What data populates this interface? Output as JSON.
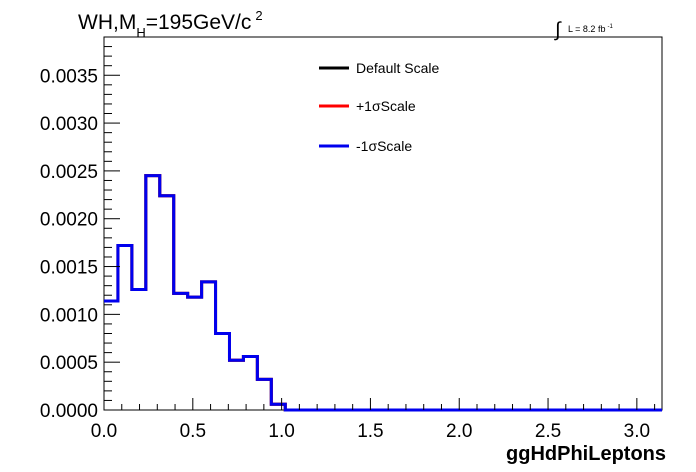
{
  "title": {
    "prefix": "WH,M",
    "subscript": "H",
    "suffix": "=195GeV/c",
    "superscript": "2"
  },
  "lumi": {
    "symbol": "∫",
    "text": "L = 8.2 fb",
    "superscript": "-1"
  },
  "chart_data": {
    "type": "line",
    "style": "step-histogram",
    "xlabel": "ggHdPhiLeptons",
    "ylabel": "",
    "xlim": [
      0,
      3.14159
    ],
    "ylim": [
      0,
      0.0039
    ],
    "x_ticks": [
      0.0,
      0.5,
      1.0,
      1.5,
      2.0,
      2.5,
      3.0
    ],
    "x_tick_labels": [
      "0.0",
      "0.5",
      "1.0",
      "1.5",
      "2.0",
      "2.5",
      "3.0"
    ],
    "y_ticks": [
      0.0,
      0.0005,
      0.001,
      0.0015,
      0.002,
      0.0025,
      0.003,
      0.0035
    ],
    "y_tick_labels": [
      "0.0000",
      "0.0005",
      "0.0010",
      "0.0015",
      "0.0020",
      "0.0025",
      "0.0030",
      "0.0035"
    ],
    "bin_edges": [
      0.0,
      0.0785,
      0.157,
      0.2355,
      0.314,
      0.3925,
      0.471,
      0.5495,
      0.628,
      0.7065,
      0.785,
      0.8635,
      0.942,
      1.0205,
      1.099,
      1.1775,
      1.256,
      1.3345,
      1.413,
      1.4915,
      1.57,
      1.6485,
      1.727,
      1.8055,
      1.884,
      1.9625,
      2.041,
      2.1195,
      2.198,
      2.2765,
      2.355,
      2.4335,
      2.512,
      2.5905,
      2.669,
      2.7475,
      2.826,
      2.9045,
      2.983,
      3.0615,
      3.14159
    ],
    "series": [
      {
        "name": "Default Scale",
        "color": "#000000",
        "values": [
          0.00114,
          0.00172,
          0.00126,
          0.00245,
          0.00224,
          0.00122,
          0.00118,
          0.00134,
          0.0008,
          0.00052,
          0.00056,
          0.00032,
          6e-05,
          0.0,
          0.0,
          0.0,
          0.0,
          0.0,
          0.0,
          0.0,
          0.0,
          0.0,
          0.0,
          0.0,
          0.0,
          0.0,
          0.0,
          0.0,
          0.0,
          0.0,
          0.0,
          0.0,
          0.0,
          0.0,
          0.0,
          0.0,
          0.0,
          0.0,
          0.0,
          0.0
        ]
      },
      {
        "name": "+1σScale",
        "color": "#ff0000",
        "values": [
          0.00114,
          0.00172,
          0.00126,
          0.00245,
          0.00224,
          0.00122,
          0.00118,
          0.00134,
          0.0008,
          0.00052,
          0.00056,
          0.00032,
          6e-05,
          0.0,
          0.0,
          0.0,
          0.0,
          0.0,
          0.0,
          0.0,
          0.0,
          0.0,
          0.0,
          0.0,
          0.0,
          0.0,
          0.0,
          0.0,
          0.0,
          0.0,
          0.0,
          0.0,
          0.0,
          0.0,
          0.0,
          0.0,
          0.0,
          0.0,
          0.0,
          0.0
        ]
      },
      {
        "name": "-1σScale",
        "color": "#0000ee",
        "values": [
          0.00114,
          0.00172,
          0.00126,
          0.00245,
          0.00224,
          0.00122,
          0.00118,
          0.00134,
          0.0008,
          0.00052,
          0.00056,
          0.00032,
          6e-05,
          0.0,
          0.0,
          0.0,
          0.0,
          0.0,
          0.0,
          0.0,
          0.0,
          0.0,
          0.0,
          0.0,
          0.0,
          0.0,
          0.0,
          0.0,
          0.0,
          0.0,
          0.0,
          0.0,
          0.0,
          0.0,
          0.0,
          0.0,
          0.0,
          0.0,
          0.0,
          0.0
        ]
      }
    ],
    "legend": {
      "position": "top-right",
      "entries": [
        "Default Scale",
        "+1σScale",
        "-1σScale"
      ]
    },
    "grid": false
  }
}
